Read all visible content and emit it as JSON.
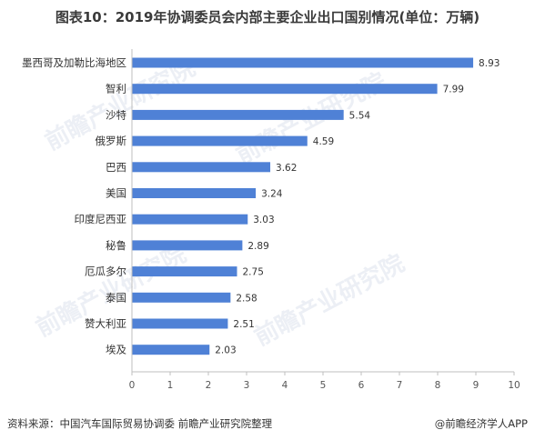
{
  "header": {
    "title": "图表10：2019年协调委员会内部主要企业出口国别情况(单位：万辆)"
  },
  "footer": {
    "source": "资料来源：中国汽车国际贸易协调委 前瞻产业研究院整理",
    "brand": "@前瞻经济学人APP"
  },
  "watermark": {
    "text": "前瞻产业研究院"
  },
  "colors": {
    "bar": "#4f81d6",
    "axis": "#bfbfbf"
  },
  "chart_data": {
    "type": "bar",
    "orientation": "horizontal",
    "title": "图表10：2019年协调委员会内部主要企业出口国别情况(单位：万辆)",
    "categories": [
      "墨西哥及加勒比海地区",
      "智利",
      "沙特",
      "俄罗斯",
      "巴西",
      "美国",
      "印度尼西亚",
      "秘鲁",
      "厄瓜多尔",
      "泰国",
      "赞大利亚",
      "埃及"
    ],
    "values": [
      8.93,
      7.99,
      5.54,
      4.59,
      3.62,
      3.24,
      3.03,
      2.89,
      2.75,
      2.58,
      2.51,
      2.03
    ],
    "value_labels": [
      "8.93",
      "7.99",
      "5.54",
      "4.59",
      "3.62",
      "3.24",
      "3.03",
      "2.89",
      "2.75",
      "2.58",
      "2.51",
      "2.03"
    ],
    "xlim": [
      0,
      10
    ],
    "xticks": [
      "0",
      "1",
      "2",
      "3",
      "4",
      "5",
      "6",
      "7",
      "8",
      "9",
      "10"
    ],
    "xlabel": "",
    "ylabel": "",
    "grid": false,
    "legend": "none"
  }
}
